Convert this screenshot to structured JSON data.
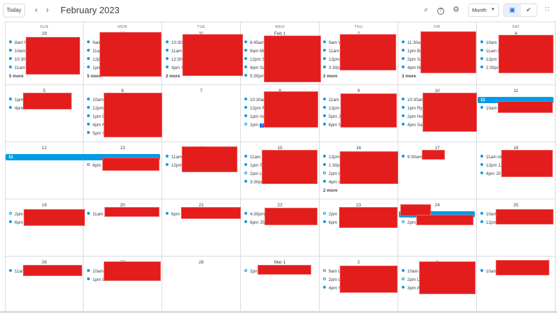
{
  "header": {
    "today_label": "Today",
    "prev_icon": "chevron-left-icon",
    "next_icon": "chevron-right-icon",
    "title": "February 2023",
    "search_icon": "search-icon",
    "help_icon": "help-icon",
    "settings_icon": "gear-icon",
    "view_select": "Month",
    "toggle_calendar_icon": "calendar-icon",
    "toggle_tasks_icon": "check-circle-icon",
    "apps_icon": "apps-grid-icon"
  },
  "colors": {
    "event": "#039be5",
    "accent": "#1a73e8",
    "redaction": "#e31c1c"
  },
  "weekdays": [
    "SUN",
    "MON",
    "TUE",
    "WED",
    "THU",
    "FRI",
    "SAT"
  ],
  "weeks": [
    [
      {
        "date": "29",
        "events": [
          {
            "t": "8am N"
          },
          {
            "t": "10am"
          },
          {
            "t": "10:30a"
          },
          {
            "t": "11am"
          }
        ],
        "more": "5 more"
      },
      {
        "date": "30",
        "events": [
          {
            "t": "9am"
          },
          {
            "t": "11a"
          },
          {
            "t": "12p"
          },
          {
            "t": "1pm"
          }
        ],
        "more": "5 more"
      },
      {
        "date": "31",
        "events": [
          {
            "t": "10:30"
          },
          {
            "t": "11am"
          },
          {
            "t": "12:30p"
          },
          {
            "t": "3pm S"
          }
        ],
        "more": "2 more"
      },
      {
        "date": "Feb 1",
        "events": [
          {
            "t": "8:45am"
          },
          {
            "t": "9am Mi"
          },
          {
            "t": "12pm S"
          },
          {
            "t": "4pm Sa"
          },
          {
            "t": "5:30pm"
          }
        ]
      },
      {
        "date": "2",
        "events": [
          {
            "t": "9am W"
          },
          {
            "t": "11am"
          },
          {
            "t": "12pm"
          },
          {
            "t": "3:30pm"
          }
        ],
        "more": "2 more"
      },
      {
        "date": "3",
        "events": [
          {
            "t": "11:30am"
          },
          {
            "t": "1pm Br"
          },
          {
            "t": "2pm Sa"
          },
          {
            "t": "4pm M"
          }
        ],
        "more": "3 more"
      },
      {
        "date": "4",
        "events": [
          {
            "t": "10am S"
          },
          {
            "t": "11am H"
          },
          {
            "t": "12pm R"
          },
          {
            "t": "2:30pm"
          }
        ]
      }
    ],
    [
      {
        "date": "5",
        "events": [
          {
            "t": "1pm"
          },
          {
            "t": "4pm"
          }
        ]
      },
      {
        "date": "6",
        "events": [
          {
            "t": "10am"
          },
          {
            "t": "12pm"
          },
          {
            "t": "1pm D"
          },
          {
            "t": "4pm M"
          },
          {
            "t": "5pm S"
          }
        ]
      },
      {
        "date": "7",
        "events": []
      },
      {
        "date": "8",
        "events": [
          {
            "t": "10:30am"
          },
          {
            "t": "12pm R"
          },
          {
            "t": "1pm Va"
          },
          {
            "t": "2pm",
            "hollow": true,
            "badge": "!"
          }
        ]
      },
      {
        "date": "9",
        "events": [
          {
            "t": "11am"
          },
          {
            "t": "12pm J"
          },
          {
            "t": "5pm J"
          },
          {
            "t": "6pm S"
          }
        ]
      },
      {
        "date": "10",
        "events": [
          {
            "t": "10:30am"
          },
          {
            "t": "1pm Rya"
          },
          {
            "t": "2pm Hel"
          },
          {
            "t": "4pm San"
          }
        ]
      },
      {
        "date": "11",
        "allday": {
          "label": "11",
          "span": 1
        },
        "events": [
          {
            "t": "10am J"
          }
        ]
      }
    ],
    [
      {
        "date": "12",
        "allday": {
          "label": "11",
          "span": 2
        },
        "events": []
      },
      {
        "date": "13",
        "allday_cont": true,
        "events": [
          {
            "t": "6pm",
            "hollow": true
          }
        ]
      },
      {
        "date": "14",
        "events": [
          {
            "t": "11am"
          },
          {
            "t": "12pm"
          }
        ]
      },
      {
        "date": "15",
        "events": [
          {
            "t": "11am"
          },
          {
            "t": "1pm S"
          },
          {
            "t": "2pm L",
            "hollow": true
          },
          {
            "t": "3:30pm"
          }
        ]
      },
      {
        "date": "16",
        "events": [
          {
            "t": "12pm"
          },
          {
            "t": "1:30pm"
          },
          {
            "t": "2pm L",
            "hollow": true
          },
          {
            "t": "4pm G"
          }
        ],
        "more": "2 more"
      },
      {
        "date": "17",
        "events": [
          {
            "t": "9:30am"
          }
        ]
      },
      {
        "date": "18",
        "events": [
          {
            "t": "11am Ab"
          },
          {
            "t": "12pm 12"
          },
          {
            "t": "4pm JS"
          }
        ]
      }
    ],
    [
      {
        "date": "19",
        "events": [
          {
            "t": "2pm",
            "hollow": true
          },
          {
            "t": "6pm"
          }
        ]
      },
      {
        "date": "20",
        "events": [
          {
            "t": "11am"
          }
        ]
      },
      {
        "date": "21",
        "events": [
          {
            "t": "6pm"
          }
        ]
      },
      {
        "date": "22",
        "events": [
          {
            "t": "4:30pm"
          },
          {
            "t": "6pm JS"
          }
        ]
      },
      {
        "date": "23",
        "events": [
          {
            "t": "2pm",
            "hollow": true
          },
          {
            "t": "6pm"
          }
        ]
      },
      {
        "date": "24",
        "allday": {
          "label": "",
          "span": 1
        },
        "events": [
          {
            "t": "2pm",
            "hollow": true
          }
        ]
      },
      {
        "date": "25",
        "events": [
          {
            "t": "10am"
          },
          {
            "t": "12pm"
          }
        ]
      }
    ],
    [
      {
        "date": "26",
        "events": [
          {
            "t": "11am"
          }
        ]
      },
      {
        "date": "27",
        "events": [
          {
            "t": "10am"
          },
          {
            "t": "1pm D"
          }
        ]
      },
      {
        "date": "28",
        "events": []
      },
      {
        "date": "Mar 1",
        "events": [
          {
            "t": "2pm",
            "hollow": true
          }
        ]
      },
      {
        "date": "2",
        "events": [
          {
            "t": "9am L",
            "hollow": true
          },
          {
            "t": "2pm L",
            "hollow": true
          },
          {
            "t": "4pm S"
          }
        ]
      },
      {
        "date": "3",
        "events": [
          {
            "t": "10am"
          },
          {
            "t": "2pm L",
            "hollow": true
          },
          {
            "t": "3pm A"
          }
        ]
      },
      {
        "date": "4",
        "events": [
          {
            "t": "10am"
          }
        ]
      }
    ]
  ]
}
